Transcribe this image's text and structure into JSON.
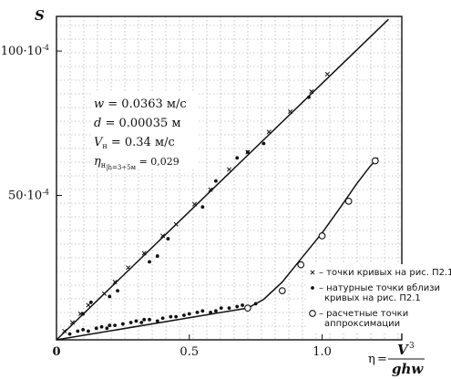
{
  "chart_data": {
    "type": "scatter",
    "xlabel": "η",
    "ylabel": "S",
    "x_formula": {
      "numerator": "V",
      "numerator_exp": "3",
      "denominator": "ghw"
    },
    "x_ticks": [
      0,
      0.5,
      1.0
    ],
    "x_tick_labels": [
      "0",
      "0.5",
      "1.0"
    ],
    "y_ticks": [
      50,
      100
    ],
    "y_tick_labels": [
      {
        "mantissa": "50·10",
        "exp": "-4"
      },
      {
        "mantissa": "100·10",
        "exp": "-4"
      }
    ],
    "xlim": [
      0,
      1.3
    ],
    "ylim": [
      0,
      112
    ],
    "y_unit": "×10⁻⁴",
    "grid": true,
    "params": [
      {
        "sym": "w",
        "sub": "",
        "text": " = 0.0363 м/с"
      },
      {
        "sym": "d",
        "sub": "",
        "text": " = 0.00035 м"
      },
      {
        "sym": "V",
        "sub": "н",
        "text": " = 0.34 м/с"
      },
      {
        "sym": "η",
        "sub": "н",
        "cond": "h=3÷5м",
        "text": " = 0,029"
      }
    ],
    "legend": [
      {
        "marker": "cross",
        "lines": [
          "– точки кривых на рис. П2.1"
        ]
      },
      {
        "marker": "dot",
        "lines": [
          "– натурные точки вблизи",
          "кривых на рис. П2.1"
        ]
      },
      {
        "marker": "circle",
        "lines": [
          "– расчетные точки",
          "аппроксимации"
        ]
      }
    ],
    "lines": [
      {
        "name": "upper",
        "x": [
          0,
          1.25
        ],
        "y": [
          0,
          111
        ]
      },
      {
        "name": "lower",
        "x": [
          0,
          0.72,
          0.78,
          0.85,
          0.92,
          1.0,
          1.07,
          1.13,
          1.18,
          1.21
        ],
        "y": [
          0,
          11,
          14,
          20,
          28,
          37,
          46,
          54,
          60,
          63
        ]
      }
    ],
    "series": [
      {
        "marker": "cross",
        "x": [
          0.03,
          0.06,
          0.09,
          0.12,
          0.18,
          0.22,
          0.27,
          0.33,
          0.4,
          0.45,
          0.52,
          0.58,
          0.65,
          0.72,
          0.8,
          0.88,
          0.96,
          1.02
        ],
        "y": [
          3,
          6,
          9,
          12,
          16,
          20,
          25,
          30,
          36,
          40,
          47,
          52,
          59,
          65,
          72,
          79,
          86,
          92
        ]
      },
      {
        "marker": "dot",
        "x": [
          0.05,
          0.08,
          0.1,
          0.12,
          0.15,
          0.17,
          0.19,
          0.2,
          0.22,
          0.25,
          0.28,
          0.3,
          0.32,
          0.33,
          0.35,
          0.38,
          0.4,
          0.43,
          0.45,
          0.48,
          0.5,
          0.53,
          0.55,
          0.58,
          0.6,
          0.62,
          0.65,
          0.68,
          0.7,
          0.75,
          0.1,
          0.13,
          0.2,
          0.23,
          0.35,
          0.38,
          0.42,
          0.55,
          0.6,
          0.68,
          0.72,
          0.78,
          0.95
        ],
        "y": [
          2,
          3,
          3.5,
          3,
          4,
          4.5,
          4,
          5,
          5,
          5.5,
          6,
          6.5,
          6,
          7,
          7,
          6.5,
          7.5,
          8,
          8,
          8.5,
          9,
          9.5,
          10,
          9.5,
          10,
          11,
          11,
          11.5,
          12,
          12.5,
          9,
          13,
          15,
          17,
          27,
          29,
          35,
          46,
          55,
          63,
          65,
          68,
          84
        ]
      },
      {
        "marker": "circle",
        "x": [
          0.72,
          0.85,
          0.92,
          1.0,
          1.1,
          1.2
        ],
        "y": [
          11,
          17,
          26,
          36,
          48,
          62
        ]
      }
    ]
  }
}
